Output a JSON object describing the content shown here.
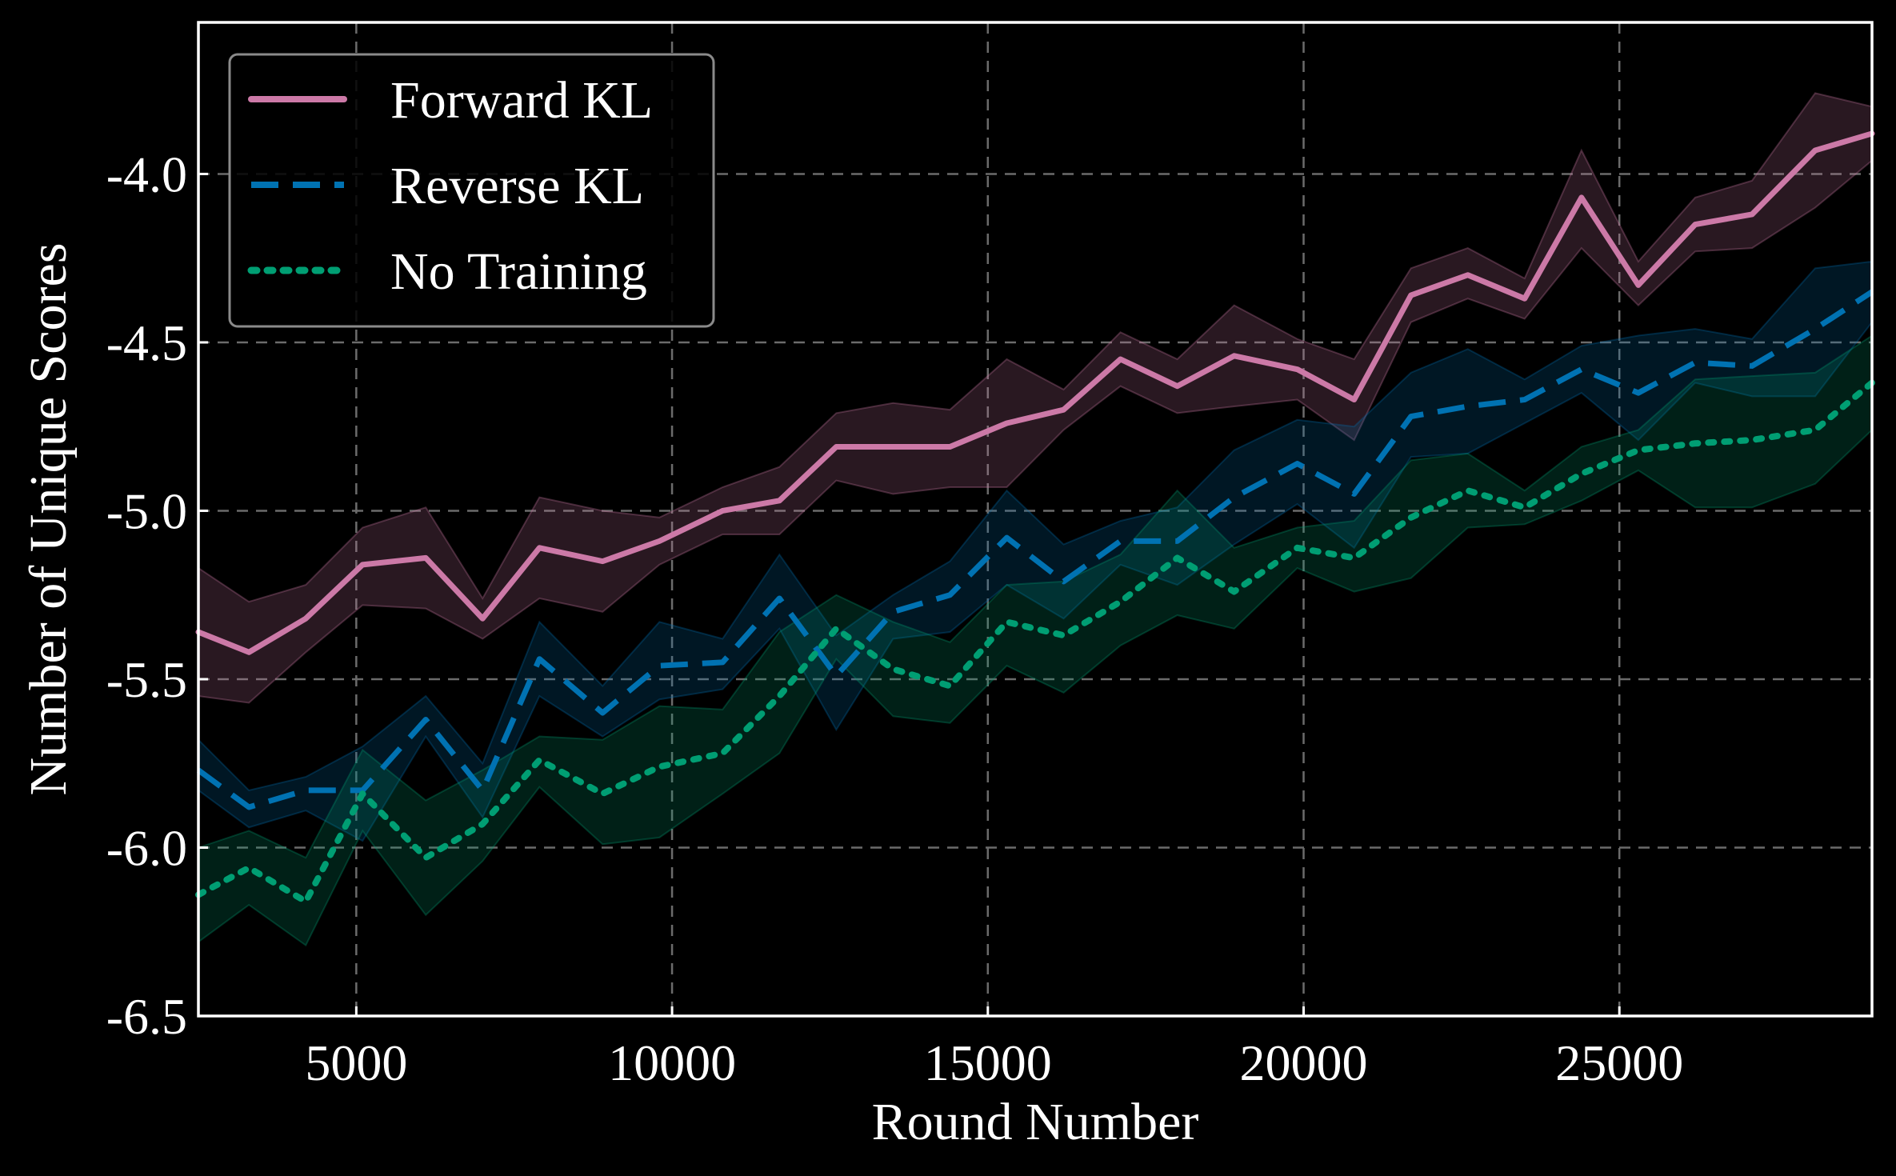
{
  "chart_data": {
    "type": "line",
    "title": "",
    "xlabel": "Round Number",
    "ylabel": "Number of Unique Scores",
    "xlim": [
      2500,
      29000
    ],
    "ylim": [
      -6.5,
      -3.55
    ],
    "xticks": [
      5000,
      10000,
      15000,
      20000,
      25000
    ],
    "yticks": [
      -6.5,
      -6.0,
      -5.5,
      -5.0,
      -4.5,
      -4.0
    ],
    "grid": true,
    "legend_position": "top-left",
    "x": [
      2500,
      3300,
      4200,
      5100,
      6100,
      7000,
      7900,
      8900,
      9800,
      10800,
      11700,
      12600,
      13500,
      14400,
      15300,
      16200,
      17100,
      18000,
      18900,
      19900,
      20800,
      21700,
      22600,
      23500,
      24400,
      25300,
      26200,
      27100,
      28100,
      29000
    ],
    "series": [
      {
        "name": "Forward KL",
        "color": "#cc79a7",
        "style": "solid",
        "values": [
          -5.36,
          -5.42,
          -5.32,
          -5.16,
          -5.14,
          -5.32,
          -5.11,
          -5.15,
          -5.09,
          -5.0,
          -4.97,
          -4.81,
          -4.81,
          -4.81,
          -4.74,
          -4.7,
          -4.55,
          -4.63,
          -4.54,
          -4.58,
          -4.67,
          -4.36,
          -4.3,
          -4.37,
          -4.07,
          -4.33,
          -4.15,
          -4.12,
          -3.93,
          -3.88
        ],
        "lower": [
          -5.55,
          -5.57,
          -5.42,
          -5.28,
          -5.29,
          -5.38,
          -5.26,
          -5.3,
          -5.16,
          -5.07,
          -5.07,
          -4.91,
          -4.95,
          -4.93,
          -4.93,
          -4.76,
          -4.63,
          -4.71,
          -4.69,
          -4.67,
          -4.79,
          -4.44,
          -4.37,
          -4.43,
          -4.22,
          -4.39,
          -4.23,
          -4.22,
          -4.1,
          -3.96
        ],
        "upper": [
          -5.17,
          -5.27,
          -5.22,
          -5.05,
          -4.99,
          -5.26,
          -4.96,
          -5.0,
          -5.02,
          -4.93,
          -4.87,
          -4.71,
          -4.68,
          -4.7,
          -4.55,
          -4.64,
          -4.47,
          -4.55,
          -4.39,
          -4.49,
          -4.55,
          -4.28,
          -4.22,
          -4.31,
          -3.93,
          -4.26,
          -4.07,
          -4.02,
          -3.76,
          -3.8
        ]
      },
      {
        "name": "Reverse KL",
        "color": "#0072b2",
        "style": "dashed",
        "values": [
          -5.77,
          -5.88,
          -5.83,
          -5.83,
          -5.62,
          -5.83,
          -5.44,
          -5.6,
          -5.46,
          -5.45,
          -5.26,
          -5.49,
          -5.3,
          -5.25,
          -5.08,
          -5.21,
          -5.09,
          -5.09,
          -4.96,
          -4.86,
          -4.95,
          -4.72,
          -4.69,
          -4.67,
          -4.58,
          -4.65,
          -4.56,
          -4.57,
          -4.46,
          -4.35
        ],
        "lower": [
          -5.83,
          -5.94,
          -5.89,
          -5.98,
          -5.67,
          -5.91,
          -5.55,
          -5.67,
          -5.56,
          -5.53,
          -5.35,
          -5.65,
          -5.38,
          -5.36,
          -5.22,
          -5.32,
          -5.16,
          -5.22,
          -5.1,
          -4.98,
          -5.11,
          -4.84,
          -4.83,
          -4.74,
          -4.65,
          -4.79,
          -4.62,
          -4.66,
          -4.66,
          -4.44
        ],
        "upper": [
          -5.68,
          -5.83,
          -5.79,
          -5.7,
          -5.55,
          -5.75,
          -5.33,
          -5.52,
          -5.33,
          -5.38,
          -5.13,
          -5.37,
          -5.25,
          -5.15,
          -4.94,
          -5.1,
          -5.03,
          -4.99,
          -4.82,
          -4.73,
          -4.75,
          -4.59,
          -4.52,
          -4.61,
          -4.51,
          -4.48,
          -4.46,
          -4.49,
          -4.28,
          -4.26
        ]
      },
      {
        "name": "No Training",
        "color": "#009e73",
        "style": "dotted",
        "values": [
          -6.14,
          -6.06,
          -6.16,
          -5.84,
          -6.03,
          -5.93,
          -5.74,
          -5.84,
          -5.76,
          -5.72,
          -5.55,
          -5.35,
          -5.47,
          -5.52,
          -5.33,
          -5.37,
          -5.27,
          -5.14,
          -5.24,
          -5.11,
          -5.14,
          -5.02,
          -4.94,
          -4.99,
          -4.89,
          -4.82,
          -4.8,
          -4.79,
          -4.76,
          -4.62
        ],
        "lower": [
          -6.28,
          -6.17,
          -6.29,
          -5.95,
          -6.2,
          -6.04,
          -5.82,
          -5.99,
          -5.97,
          -5.84,
          -5.72,
          -5.44,
          -5.61,
          -5.63,
          -5.46,
          -5.54,
          -5.4,
          -5.31,
          -5.35,
          -5.17,
          -5.24,
          -5.2,
          -5.05,
          -5.04,
          -4.97,
          -4.88,
          -4.99,
          -4.99,
          -4.92,
          -4.76
        ],
        "upper": [
          -6.0,
          -5.95,
          -6.03,
          -5.71,
          -5.86,
          -5.77,
          -5.67,
          -5.68,
          -5.58,
          -5.59,
          -5.36,
          -5.25,
          -5.33,
          -5.39,
          -5.22,
          -5.21,
          -5.13,
          -4.94,
          -5.11,
          -5.05,
          -5.03,
          -4.85,
          -4.83,
          -4.94,
          -4.81,
          -4.76,
          -4.61,
          -4.6,
          -4.59,
          -4.48
        ]
      }
    ]
  }
}
